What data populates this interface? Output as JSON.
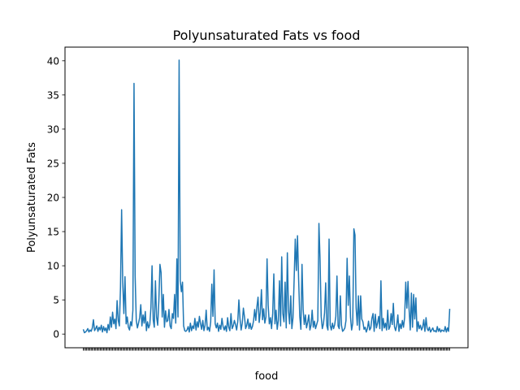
{
  "chart_data": {
    "type": "line",
    "title": "Polyunsaturated Fats vs food",
    "xlabel": "food",
    "ylabel": "Polyunsaturated Fats",
    "ylim": [
      -2,
      42
    ],
    "yticks": [
      0,
      5,
      10,
      15,
      20,
      25,
      30,
      35,
      40
    ],
    "grid": false,
    "color": "#1f77b4",
    "series": [
      {
        "values": [
          0.7,
          0.2,
          0.3,
          0.5,
          0.8,
          0.3,
          0.6,
          0.4,
          0.9,
          2.1,
          0.5,
          0.8,
          1.2,
          0.4,
          1.0,
          0.6,
          1.3,
          0.3,
          1.1,
          0.5,
          0.9,
          0.2,
          1.4,
          0.6,
          2.5,
          1.0,
          3.2,
          1.5,
          2.2,
          0.8,
          4.9,
          2.0,
          1.2,
          6.8,
          18.2,
          7.5,
          3.0,
          8.4,
          1.5,
          2.5,
          1.0,
          0.6,
          1.8,
          1.2,
          3.5,
          36.7,
          8.5,
          2.0,
          0.9,
          1.6,
          2.4,
          4.3,
          1.2,
          2.8,
          1.6,
          3.3,
          0.5,
          1.8,
          0.9,
          1.4,
          3.9,
          10.0,
          2.1,
          1.0,
          7.8,
          2.5,
          1.3,
          4.8,
          10.2,
          9.0,
          2.5,
          5.8,
          1.0,
          3.4,
          1.8,
          2.0,
          3.6,
          1.2,
          0.8,
          3.0,
          2.3,
          5.8,
          1.6,
          11.0,
          2.5,
          40.1,
          7.8,
          6.2,
          7.6,
          1.2,
          0.5,
          0.4,
          0.6,
          1.1,
          0.3,
          1.6,
          0.5,
          1.2,
          0.8,
          2.3,
          0.6,
          1.8,
          1.0,
          2.6,
          1.5,
          0.7,
          2.0,
          0.5,
          1.3,
          3.5,
          0.6,
          1.0,
          0.4,
          1.8,
          7.3,
          2.6,
          9.4,
          1.5,
          0.9,
          1.6,
          0.4,
          1.3,
          0.7,
          2.3,
          1.1,
          0.6,
          1.2,
          0.4,
          2.4,
          1.0,
          0.5,
          3.0,
          0.8,
          1.2,
          2.0,
          1.4,
          0.6,
          1.8,
          5.0,
          2.2,
          0.6,
          1.6,
          3.8,
          2.5,
          0.8,
          1.3,
          2.2,
          0.8,
          1.6,
          0.7,
          1.1,
          1.9,
          3.6,
          2.0,
          4.0,
          5.4,
          1.7,
          3.2,
          6.5,
          2.1,
          3.7,
          1.6,
          2.5,
          11.0,
          4.2,
          1.5,
          2.4,
          0.8,
          3.0,
          8.8,
          1.5,
          3.5,
          0.7,
          2.0,
          7.8,
          1.2,
          11.3,
          3.0,
          1.8,
          7.6,
          0.9,
          11.9,
          3.4,
          1.5,
          5.6,
          0.8,
          2.4,
          7.9,
          13.9,
          9.3,
          14.4,
          8.0,
          2.6,
          0.7,
          10.2,
          3.6,
          1.4,
          2.8,
          0.9,
          1.7,
          2.8,
          0.6,
          1.3,
          3.5,
          1.0,
          1.9,
          0.8,
          1.4,
          2.0,
          16.2,
          10.9,
          2.6,
          0.8,
          1.5,
          3.1,
          7.5,
          1.2,
          0.6,
          13.9,
          1.3,
          0.6,
          1.6,
          0.8,
          1.4,
          2.6,
          8.5,
          1.2,
          0.8,
          5.6,
          1.3,
          0.4,
          0.6,
          0.9,
          2.0,
          11.1,
          4.2,
          8.5,
          2.5,
          0.6,
          1.6,
          15.4,
          14.5,
          3.8,
          1.3,
          5.6,
          0.6,
          5.6,
          2.2,
          1.8,
          0.7,
          1.0,
          0.3,
          0.8,
          1.9,
          0.6,
          0.9,
          2.3,
          3.0,
          0.4,
          2.9,
          0.9,
          1.6,
          2.6,
          0.8,
          7.8,
          0.5,
          2.3,
          0.9,
          1.6,
          0.6,
          3.5,
          0.7,
          1.1,
          3.0,
          1.4,
          4.5,
          1.1,
          0.5,
          1.3,
          2.8,
          0.4,
          1.5,
          0.8,
          2.0,
          1.0,
          2.4,
          7.6,
          3.8,
          7.7,
          3.5,
          0.6,
          6.0,
          1.0,
          5.8,
          2.2,
          5.3,
          0.4,
          1.8,
          0.8,
          1.3,
          0.6,
          1.0,
          2.1,
          0.4,
          2.4,
          0.8,
          0.5,
          1.0,
          0.3,
          0.6,
          0.9,
          0.4,
          0.5,
          0.3,
          1.1,
          0.4,
          0.8,
          0.3,
          0.6,
          0.5,
          0.4,
          1.1,
          0.3,
          0.9,
          0.4,
          3.7
        ]
      }
    ]
  }
}
